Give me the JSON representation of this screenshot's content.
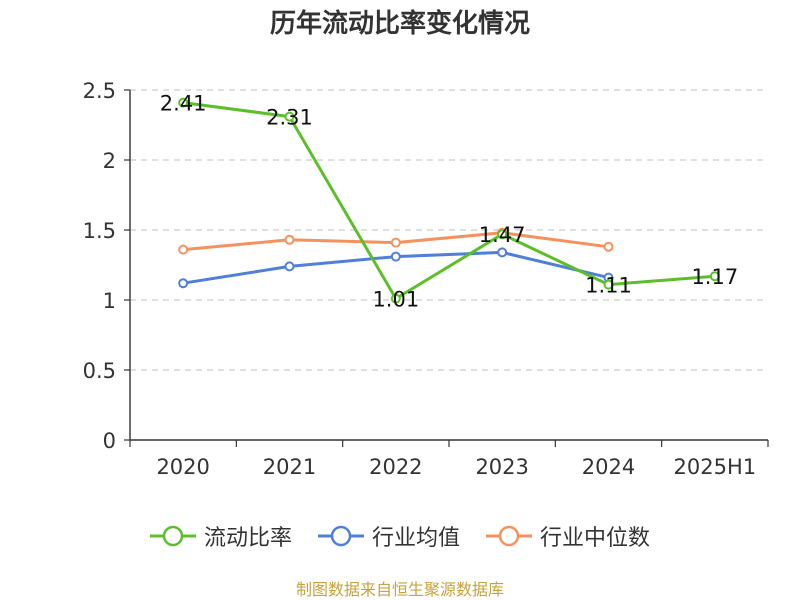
{
  "title": "历年流动比率变化情况",
  "source": "制图数据来自恒生聚源数据库",
  "colors": {
    "green": "#5cbf2a",
    "blue": "#4f7fd8",
    "orange": "#f5915c",
    "axis": "#333333",
    "grid": "#cccccc"
  },
  "chart_data": {
    "type": "line",
    "categories": [
      "2020",
      "2021",
      "2022",
      "2023",
      "2024",
      "2025H1"
    ],
    "ylim": [
      0,
      2.5
    ],
    "yticks": [
      "0",
      "0.5",
      "1",
      "1.5",
      "2",
      "2.5"
    ],
    "grid": true,
    "legend_position": "bottom",
    "series": [
      {
        "name": "流动比率",
        "color": "#5cbf2a",
        "values": [
          2.41,
          2.31,
          1.01,
          1.47,
          1.11,
          1.17
        ],
        "labels": [
          "2.41",
          "2.31",
          "1.01",
          "1.47",
          "1.11",
          "1.17"
        ]
      },
      {
        "name": "行业均值",
        "color": "#4f7fd8",
        "values": [
          1.12,
          1.24,
          1.31,
          1.34,
          1.16,
          null
        ]
      },
      {
        "name": "行业中位数",
        "color": "#f5915c",
        "values": [
          1.36,
          1.43,
          1.41,
          1.48,
          1.38,
          null
        ]
      }
    ]
  }
}
